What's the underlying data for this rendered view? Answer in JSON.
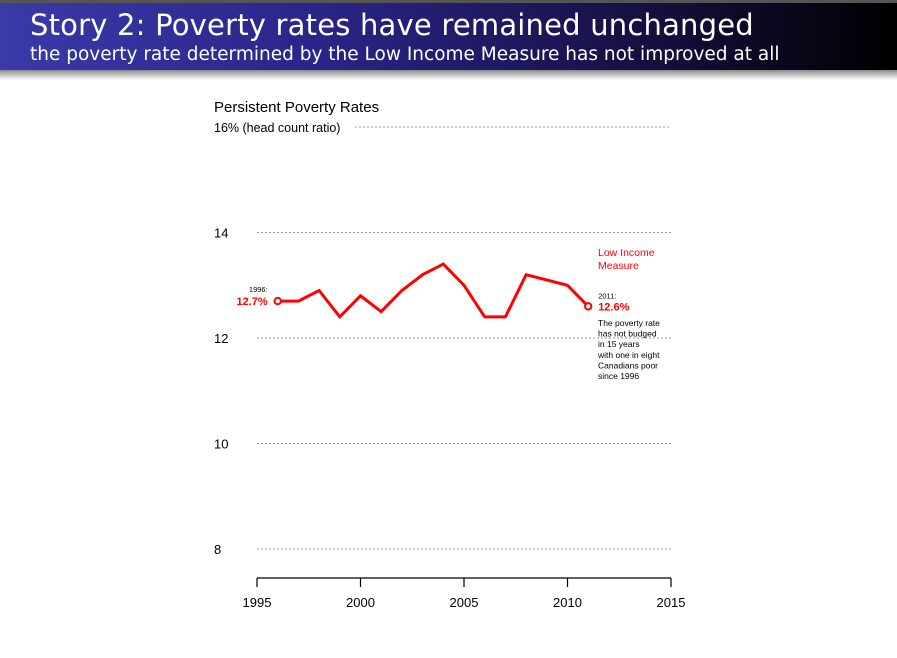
{
  "header": {
    "title": "Story 2: Poverty rates have remained unchanged",
    "subtitle": "the poverty rate determined by the Low Income Measure has not improved at all"
  },
  "chart_data": {
    "type": "line",
    "title": "Persistent Poverty Rates",
    "ylabel_top": "16% (head count ratio)",
    "xlabel": "",
    "ylabel": "",
    "xlim": [
      1995,
      2015
    ],
    "ylim": [
      8,
      16
    ],
    "x_ticks": [
      1995,
      2000,
      2005,
      2010,
      2015
    ],
    "y_ticks": [
      {
        "value": 16,
        "label": "16% (head count ratio)"
      },
      {
        "value": 14,
        "label": "14"
      },
      {
        "value": 12,
        "label": "12"
      },
      {
        "value": 10,
        "label": "10"
      },
      {
        "value": 8,
        "label": "8"
      }
    ],
    "grid": "horizontal-dotted",
    "series": [
      {
        "name": "Low Income Measure",
        "color": "#ff0000",
        "x": [
          1996,
          1997,
          1998,
          1999,
          2000,
          2001,
          2002,
          2003,
          2004,
          2005,
          2006,
          2007,
          2008,
          2009,
          2010,
          2011
        ],
        "values": [
          12.7,
          12.7,
          12.9,
          12.4,
          12.8,
          12.5,
          12.9,
          13.2,
          13.4,
          13.0,
          12.4,
          12.4,
          13.2,
          13.1,
          13.0,
          12.6
        ]
      }
    ],
    "annotations": {
      "start": {
        "year_label": "1996:",
        "value_label": "12.7%"
      },
      "end": {
        "year_label": "2011:",
        "value_label": "12.6%"
      },
      "series_label": [
        "Low Income",
        "Measure"
      ],
      "note": [
        "The poverty rate",
        "has not budged",
        "in 15 years",
        "with one in eight",
        "Canadians poor",
        "since 1996"
      ]
    }
  }
}
